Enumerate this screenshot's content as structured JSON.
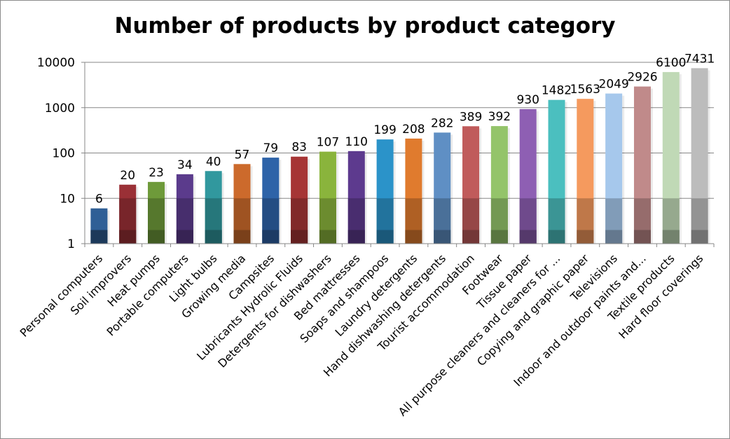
{
  "chart_data": {
    "type": "bar",
    "title": "Number of products by product category",
    "xlabel": "",
    "ylabel": "",
    "yscale": "log",
    "ylim": [
      1,
      10000
    ],
    "yticks": [
      "1",
      "10",
      "100",
      "1000",
      "10000"
    ],
    "grid": true,
    "legend": "none",
    "categories": [
      "Personal computers",
      "Soil improvers",
      "Heat pumps",
      "Portable computers",
      "Light bulbs",
      "Growing media",
      "Campsites",
      "Lubricants Hydrolic Fluids",
      "Detergents for dishwashers",
      "Bed mattresses",
      "Soaps and shampoos",
      "Laundry detergents",
      "Hand dishwashing detergents",
      "Tourist accommodation",
      "Footwear",
      "Tissue paper",
      "All purpose cleaners and cleaners for ...",
      "Copying and graphic paper",
      "Televisions",
      "Indoor and outdoor paints and...",
      "Textile products",
      "Hard floor coverings"
    ],
    "values": [
      6,
      20,
      23,
      34,
      40,
      57,
      79,
      83,
      107,
      110,
      199,
      208,
      282,
      389,
      392,
      930,
      1482,
      1563,
      2049,
      2926,
      6100,
      7431
    ],
    "data_labels": [
      "6",
      "20",
      "23",
      "34",
      "40",
      "57",
      "79",
      "83",
      "107",
      "110",
      "199",
      "208",
      "282",
      "389",
      "392",
      "930",
      "1482",
      "1563",
      "2049",
      "2926",
      "6100",
      "7431"
    ]
  },
  "colors": {
    "bars": [
      "#2f5f96",
      "#9a3036",
      "#6e9a3a",
      "#5b3b8c",
      "#31989e",
      "#cc6a2c",
      "#2e63a8",
      "#a63535",
      "#8ab43c",
      "#5d3a8e",
      "#2b93c9",
      "#e07b2e",
      "#5f8fc4",
      "#c05b5b",
      "#94c46a",
      "#8e5fb3",
      "#4bbfbf",
      "#f59a5e",
      "#a6c8ec",
      "#c08a8a",
      "#c0d9b6",
      "#bcbcbc"
    ],
    "gridline": "#878787",
    "axis": "#878787",
    "text": "#000000"
  }
}
